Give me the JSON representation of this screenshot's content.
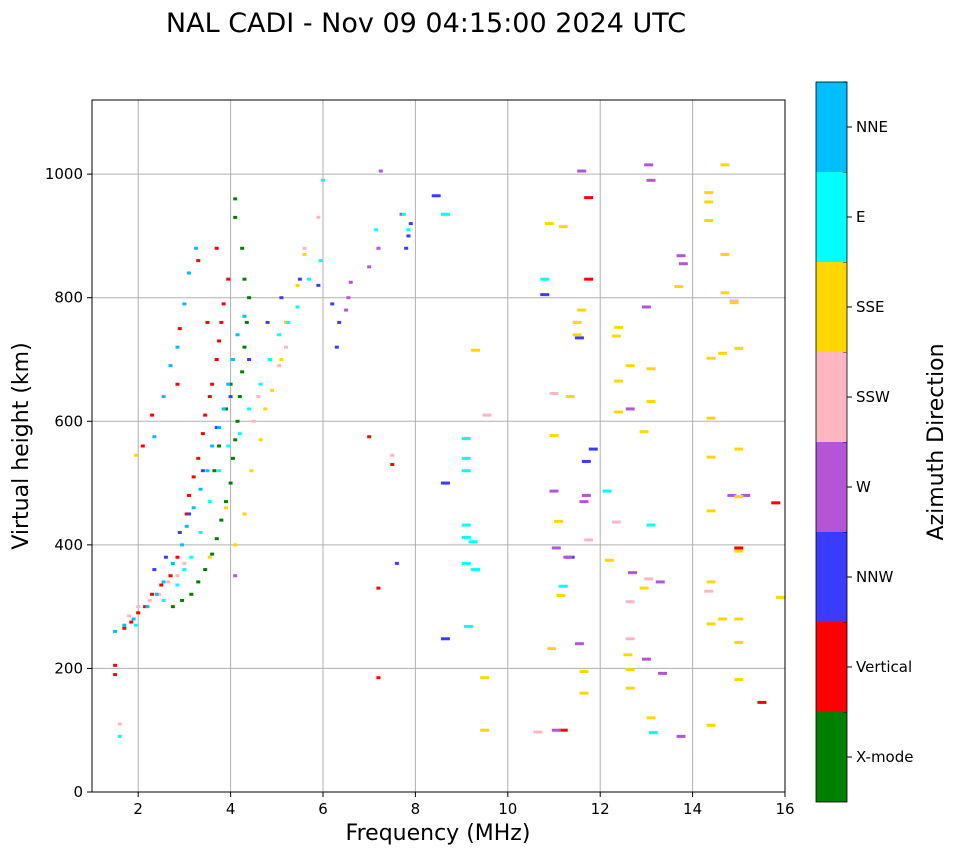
{
  "chart_data": {
    "type": "scatter",
    "title": "NAL CADI - Nov 09 04:15:00 2024 UTC",
    "xlabel": "Frequency (MHz)",
    "ylabel": "Virtual height (km)",
    "xlim": [
      1,
      16
    ],
    "ylim": [
      0,
      1120
    ],
    "xticks": [
      2,
      4,
      6,
      8,
      10,
      12,
      14,
      16
    ],
    "yticks": [
      0,
      200,
      400,
      600,
      800,
      1000
    ],
    "grid": true,
    "colorbar": {
      "label": "Azimuth Direction",
      "position": "right",
      "categories": [
        {
          "name": "X-mode",
          "color": "#008000"
        },
        {
          "name": "Vertical",
          "color": "#ff0000"
        },
        {
          "name": "NNW",
          "color": "#3b3bff"
        },
        {
          "name": "W",
          "color": "#b455d6"
        },
        {
          "name": "SSW",
          "color": "#ffb6c1"
        },
        {
          "name": "SSE",
          "color": "#ffd700"
        },
        {
          "name": "E",
          "color": "#00ffff"
        },
        {
          "name": "NNE",
          "color": "#00bfff"
        }
      ]
    },
    "series": [
      {
        "name": "X-mode",
        "points": [
          [
            2.75,
            300
          ],
          [
            2.95,
            310
          ],
          [
            3.15,
            320
          ],
          [
            3.3,
            340
          ],
          [
            3.45,
            360
          ],
          [
            3.6,
            385
          ],
          [
            3.7,
            410
          ],
          [
            3.8,
            440
          ],
          [
            3.9,
            470
          ],
          [
            4.0,
            500
          ],
          [
            4.05,
            540
          ],
          [
            4.1,
            570
          ],
          [
            4.15,
            600
          ],
          [
            4.2,
            640
          ],
          [
            4.25,
            680
          ],
          [
            4.3,
            720
          ],
          [
            4.35,
            760
          ],
          [
            4.4,
            800
          ],
          [
            4.25,
            880
          ],
          [
            4.1,
            930
          ],
          [
            4.1,
            960
          ],
          [
            3.65,
            520
          ],
          [
            3.75,
            560
          ],
          [
            3.9,
            620
          ],
          [
            4.0,
            660
          ],
          [
            4.3,
            830
          ]
        ]
      },
      {
        "name": "Vertical",
        "points": [
          [
            1.5,
            190
          ],
          [
            1.5,
            205
          ],
          [
            1.7,
            265
          ],
          [
            1.85,
            275
          ],
          [
            2.0,
            290
          ],
          [
            2.15,
            300
          ],
          [
            2.3,
            320
          ],
          [
            2.5,
            335
          ],
          [
            2.7,
            350
          ],
          [
            2.85,
            380
          ],
          [
            3.05,
            450
          ],
          [
            3.1,
            480
          ],
          [
            3.2,
            510
          ],
          [
            3.3,
            540
          ],
          [
            3.4,
            580
          ],
          [
            3.45,
            610
          ],
          [
            3.55,
            640
          ],
          [
            3.6,
            660
          ],
          [
            3.7,
            700
          ],
          [
            3.75,
            730
          ],
          [
            3.8,
            760
          ],
          [
            3.85,
            790
          ],
          [
            3.95,
            830
          ],
          [
            3.5,
            760
          ],
          [
            3.7,
            880
          ],
          [
            3.3,
            860
          ],
          [
            2.1,
            560
          ],
          [
            2.3,
            610
          ],
          [
            2.85,
            660
          ],
          [
            2.9,
            750
          ],
          [
            7.2,
            185
          ],
          [
            7.2,
            330
          ],
          [
            7.5,
            530
          ],
          [
            7.0,
            575
          ],
          [
            11.75,
            830
          ],
          [
            11.75,
            962
          ],
          [
            11.2,
            100
          ],
          [
            15.8,
            468
          ],
          [
            15.5,
            145
          ],
          [
            15.0,
            395
          ]
        ]
      },
      {
        "name": "NNW",
        "points": [
          [
            2.35,
            360
          ],
          [
            2.6,
            380
          ],
          [
            2.9,
            420
          ],
          [
            3.1,
            450
          ],
          [
            3.4,
            520
          ],
          [
            3.7,
            590
          ],
          [
            4.0,
            640
          ],
          [
            4.4,
            700
          ],
          [
            4.8,
            760
          ],
          [
            5.1,
            800
          ],
          [
            5.5,
            830
          ],
          [
            5.9,
            820
          ],
          [
            6.2,
            790
          ],
          [
            6.35,
            760
          ],
          [
            6.3,
            720
          ],
          [
            7.8,
            880
          ],
          [
            7.85,
            900
          ],
          [
            7.9,
            920
          ],
          [
            8.45,
            965
          ],
          [
            8.65,
            500
          ],
          [
            8.65,
            248
          ],
          [
            10.8,
            805
          ],
          [
            11.35,
            380
          ],
          [
            11.55,
            735
          ],
          [
            11.7,
            535
          ],
          [
            11.85,
            555
          ],
          [
            7.6,
            370
          ]
        ]
      },
      {
        "name": "W",
        "points": [
          [
            4.1,
            350
          ],
          [
            6.5,
            780
          ],
          [
            6.55,
            800
          ],
          [
            6.6,
            825
          ],
          [
            7.25,
            1005
          ],
          [
            7.0,
            850
          ],
          [
            7.2,
            880
          ],
          [
            7.7,
            935
          ],
          [
            11.05,
            395
          ],
          [
            11.3,
            380
          ],
          [
            11.55,
            240
          ],
          [
            11.65,
            470
          ],
          [
            11.7,
            480
          ],
          [
            11.6,
            1005
          ],
          [
            12.65,
            620
          ],
          [
            12.7,
            355
          ],
          [
            13.0,
            215
          ],
          [
            13.05,
            1015
          ],
          [
            13.1,
            990
          ],
          [
            13.35,
            192
          ],
          [
            13.3,
            340
          ],
          [
            13.75,
            868
          ],
          [
            13.8,
            855
          ],
          [
            13.75,
            90
          ],
          [
            14.85,
            480
          ],
          [
            15.15,
            480
          ],
          [
            11.05,
            100
          ],
          [
            13.0,
            785
          ],
          [
            11.0,
            487
          ]
        ]
      },
      {
        "name": "SSW",
        "points": [
          [
            1.8,
            285
          ],
          [
            2.0,
            300
          ],
          [
            2.25,
            310
          ],
          [
            2.45,
            320
          ],
          [
            2.65,
            340
          ],
          [
            2.85,
            350
          ],
          [
            3.0,
            370
          ],
          [
            4.5,
            600
          ],
          [
            4.6,
            640
          ],
          [
            5.05,
            690
          ],
          [
            5.2,
            720
          ],
          [
            5.6,
            880
          ],
          [
            5.9,
            930
          ],
          [
            7.5,
            545
          ],
          [
            9.55,
            610
          ],
          [
            10.65,
            97
          ],
          [
            11.0,
            645
          ],
          [
            11.75,
            408
          ],
          [
            12.35,
            437
          ],
          [
            12.65,
            248
          ],
          [
            12.65,
            308
          ],
          [
            13.05,
            345
          ],
          [
            14.35,
            325
          ],
          [
            14.9,
            795
          ],
          [
            1.6,
            110
          ]
        ]
      },
      {
        "name": "SSE",
        "points": [
          [
            1.95,
            545
          ],
          [
            3.55,
            380
          ],
          [
            3.9,
            460
          ],
          [
            4.1,
            400
          ],
          [
            4.3,
            450
          ],
          [
            4.45,
            520
          ],
          [
            4.65,
            570
          ],
          [
            4.75,
            620
          ],
          [
            4.9,
            650
          ],
          [
            5.1,
            700
          ],
          [
            5.2,
            760
          ],
          [
            5.45,
            820
          ],
          [
            5.6,
            870
          ],
          [
            9.3,
            715
          ],
          [
            9.5,
            185
          ],
          [
            9.5,
            100
          ],
          [
            10.9,
            920
          ],
          [
            10.95,
            232
          ],
          [
            11.0,
            577
          ],
          [
            11.1,
            438
          ],
          [
            11.15,
            318
          ],
          [
            11.2,
            915
          ],
          [
            11.35,
            640
          ],
          [
            11.5,
            760
          ],
          [
            11.5,
            740
          ],
          [
            11.6,
            780
          ],
          [
            11.65,
            195
          ],
          [
            11.65,
            160
          ],
          [
            12.2,
            375
          ],
          [
            12.35,
            738
          ],
          [
            12.4,
            752
          ],
          [
            12.4,
            665
          ],
          [
            12.4,
            615
          ],
          [
            12.65,
            690
          ],
          [
            12.6,
            222
          ],
          [
            12.65,
            198
          ],
          [
            12.65,
            168
          ],
          [
            12.95,
            583
          ],
          [
            12.95,
            330
          ],
          [
            13.1,
            685
          ],
          [
            13.1,
            632
          ],
          [
            13.1,
            120
          ],
          [
            14.35,
            970
          ],
          [
            14.35,
            955
          ],
          [
            14.35,
            925
          ],
          [
            14.4,
            702
          ],
          [
            14.4,
            605
          ],
          [
            14.4,
            542
          ],
          [
            14.4,
            455
          ],
          [
            14.4,
            340
          ],
          [
            14.4,
            272
          ],
          [
            14.4,
            108
          ],
          [
            14.7,
            1015
          ],
          [
            14.7,
            870
          ],
          [
            14.7,
            808
          ],
          [
            14.65,
            710
          ],
          [
            14.65,
            280
          ],
          [
            14.9,
            792
          ],
          [
            15.0,
            718
          ],
          [
            15.0,
            555
          ],
          [
            15.0,
            478
          ],
          [
            15.0,
            390
          ],
          [
            15.0,
            280
          ],
          [
            15.0,
            242
          ],
          [
            15.0,
            182
          ],
          [
            15.9,
            315
          ],
          [
            13.7,
            818
          ]
        ]
      },
      {
        "name": "E",
        "points": [
          [
            1.6,
            90
          ],
          [
            1.95,
            270
          ],
          [
            2.55,
            310
          ],
          [
            2.85,
            335
          ],
          [
            3.0,
            360
          ],
          [
            3.15,
            380
          ],
          [
            3.35,
            420
          ],
          [
            3.55,
            470
          ],
          [
            3.75,
            520
          ],
          [
            3.95,
            560
          ],
          [
            4.2,
            580
          ],
          [
            4.4,
            620
          ],
          [
            4.65,
            660
          ],
          [
            4.85,
            700
          ],
          [
            5.05,
            740
          ],
          [
            5.25,
            760
          ],
          [
            5.45,
            785
          ],
          [
            5.7,
            830
          ],
          [
            5.95,
            860
          ],
          [
            6.0,
            990
          ],
          [
            7.15,
            910
          ],
          [
            7.75,
            935
          ],
          [
            9.1,
            572
          ],
          [
            9.1,
            540
          ],
          [
            9.1,
            520
          ],
          [
            9.1,
            432
          ],
          [
            9.1,
            412
          ],
          [
            9.1,
            370
          ],
          [
            9.15,
            268
          ],
          [
            9.25,
            405
          ],
          [
            9.3,
            360
          ],
          [
            8.65,
            935
          ],
          [
            10.8,
            830
          ],
          [
            11.2,
            333
          ],
          [
            12.15,
            487
          ],
          [
            13.1,
            432
          ],
          [
            13.15,
            96
          ],
          [
            7.85,
            910
          ]
        ]
      },
      {
        "name": "NNE",
        "points": [
          [
            1.5,
            260
          ],
          [
            1.7,
            270
          ],
          [
            1.9,
            280
          ],
          [
            2.2,
            300
          ],
          [
            2.4,
            320
          ],
          [
            2.55,
            340
          ],
          [
            2.75,
            370
          ],
          [
            2.95,
            400
          ],
          [
            3.05,
            430
          ],
          [
            3.2,
            460
          ],
          [
            3.35,
            490
          ],
          [
            3.5,
            520
          ],
          [
            3.6,
            560
          ],
          [
            3.75,
            590
          ],
          [
            3.85,
            620
          ],
          [
            3.95,
            660
          ],
          [
            4.05,
            700
          ],
          [
            4.15,
            740
          ],
          [
            4.3,
            770
          ],
          [
            2.55,
            640
          ],
          [
            2.7,
            690
          ],
          [
            2.85,
            720
          ],
          [
            3.0,
            790
          ],
          [
            3.1,
            840
          ],
          [
            3.25,
            880
          ],
          [
            2.35,
            575
          ]
        ]
      }
    ]
  }
}
